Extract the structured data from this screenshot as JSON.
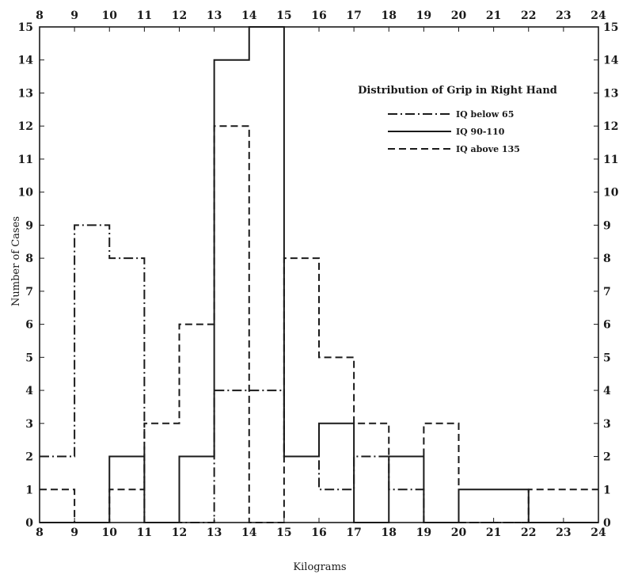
{
  "chart_data": {
    "type": "line",
    "step": true,
    "title": "Distribution of Grip in Right Hand",
    "xlabel": "Kilograms",
    "ylabel": "Number of Cases",
    "xlim": [
      8,
      24
    ],
    "ylim": [
      0,
      15
    ],
    "x_ticks": [
      8,
      9,
      10,
      11,
      12,
      13,
      14,
      15,
      16,
      17,
      18,
      19,
      20,
      21,
      22,
      23,
      24
    ],
    "y_ticks": [
      0,
      1,
      2,
      3,
      4,
      5,
      6,
      7,
      8,
      9,
      10,
      11,
      12,
      13,
      14,
      15
    ],
    "grid": false,
    "legend_position": "top-right",
    "bin_edges": [
      8,
      9,
      10,
      11,
      12,
      13,
      14,
      15,
      16,
      17,
      18,
      19,
      20,
      21,
      22,
      23,
      24
    ],
    "series": [
      {
        "name": "IQ below 65",
        "dash": "dash-dot",
        "values": [
          2,
          9,
          8,
          0,
          0,
          4,
          4,
          2,
          1,
          2,
          1,
          0,
          0,
          0,
          0,
          0
        ]
      },
      {
        "name": "IQ 90-110",
        "dash": "solid",
        "values": [
          0,
          0,
          2,
          0,
          2,
          14,
          15,
          2,
          3,
          0,
          2,
          0,
          1,
          1,
          0,
          0
        ]
      },
      {
        "name": "IQ above 135",
        "dash": "dashed",
        "values": [
          1,
          0,
          1,
          3,
          6,
          12,
          0,
          8,
          5,
          3,
          2,
          3,
          0,
          0,
          1,
          1
        ]
      }
    ]
  },
  "colors": {
    "ink": "#1a1a1a",
    "background": "#ffffff"
  }
}
